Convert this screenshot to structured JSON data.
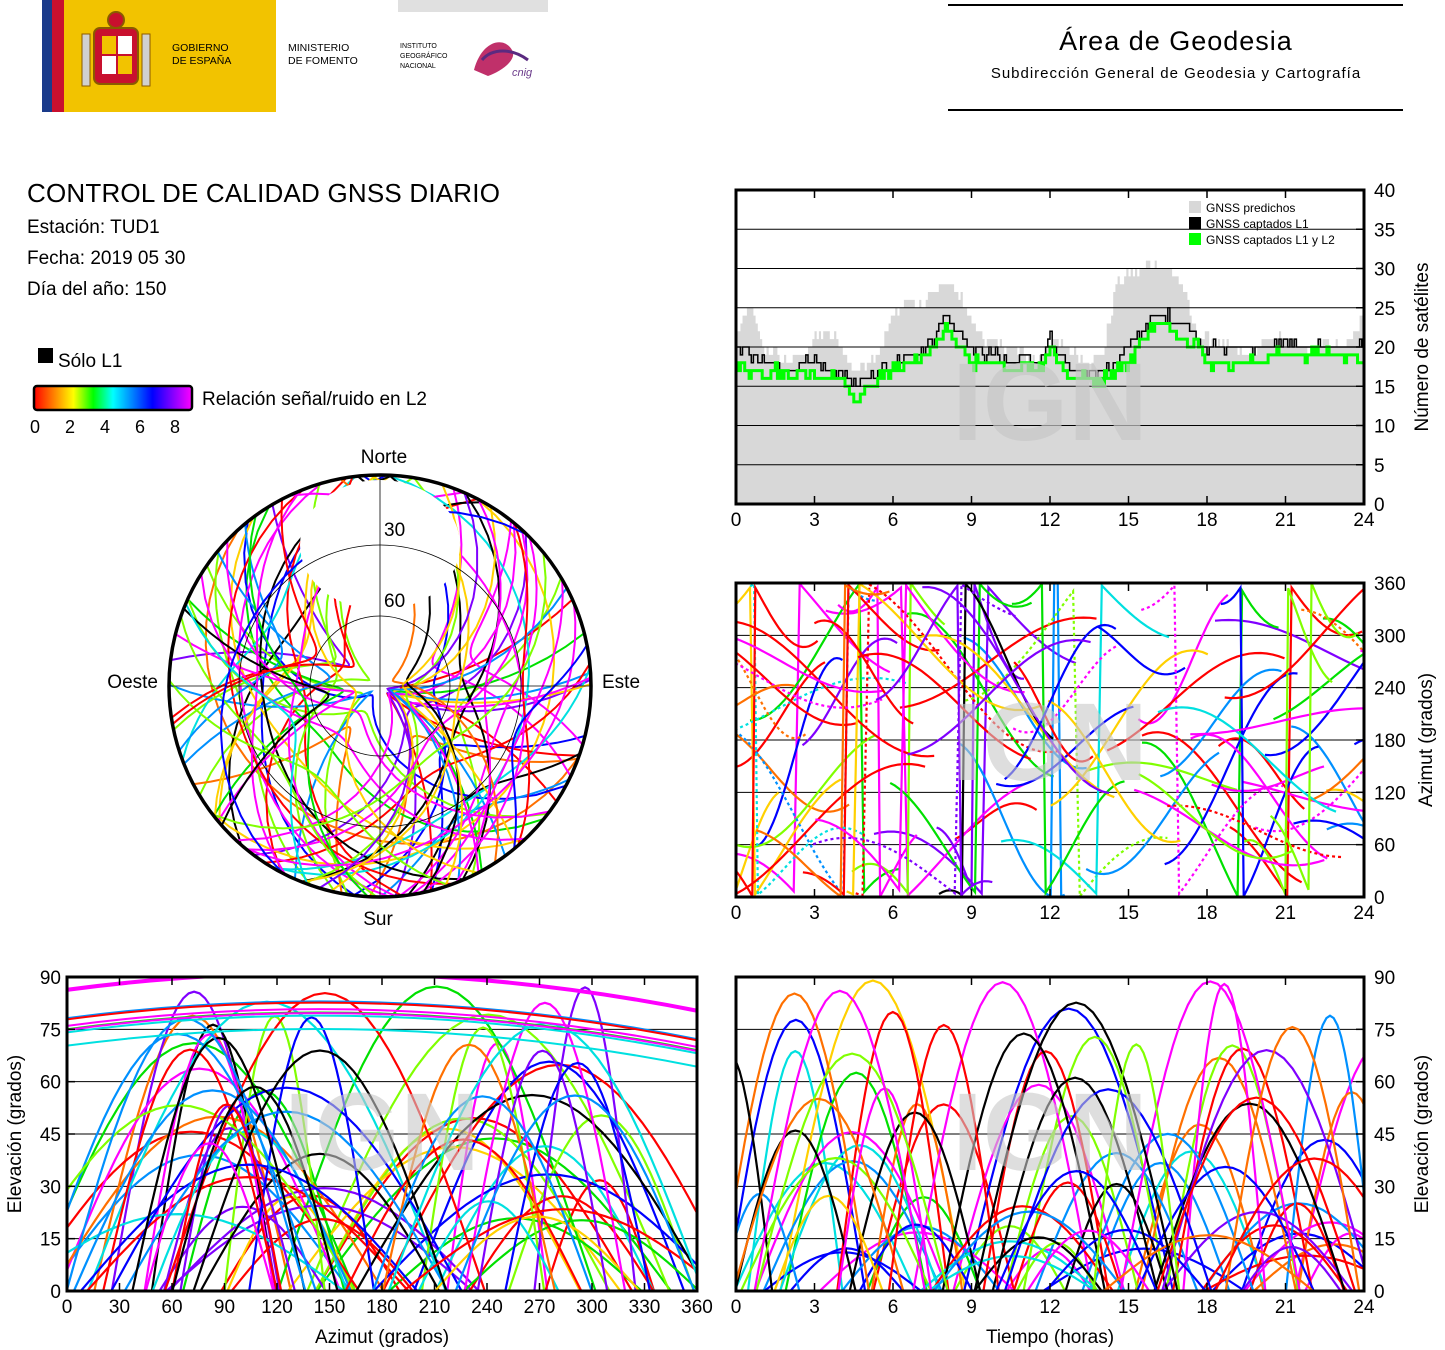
{
  "header": {
    "gobierno": [
      "GOBIERNO",
      "DE ESPAÑA"
    ],
    "ministerio": [
      "MINISTERIO",
      "DE FOMENTO"
    ],
    "instituto": [
      "INSTITUTO",
      "GEOGRÁFICO",
      "NACIONAL"
    ],
    "cnig": "cnig",
    "area_title": "Área de Geodesia",
    "area_subtitle": "Subdirección General de Geodesia y Cartografía"
  },
  "info": {
    "title": "CONTROL DE CALIDAD GNSS DIARIO",
    "station": "Estación: TUD1",
    "date": "Fecha: 2019 05 30",
    "doy": "Día del año: 150"
  },
  "legend": {
    "l1_only": "Sólo L1",
    "snr_label": "Relación señal/ruido en L2",
    "snr_ticks": [
      "0",
      "2",
      "4",
      "6",
      "8"
    ],
    "snr_colors": [
      "#ff0000",
      "#ff8000",
      "#ffff00",
      "#00ff00",
      "#00ffff",
      "#0080ff",
      "#0000ff",
      "#8000ff",
      "#ff00ff"
    ]
  },
  "watermark": "IGN",
  "colors": {
    "predicted": "#d8d8d8",
    "l1": "#000000",
    "l1l2": "#00ff00"
  },
  "chart_data": [
    {
      "type": "area",
      "id": "satellites",
      "ylabel": "Número de satélites",
      "xlim": [
        0,
        24
      ],
      "ylim": [
        0,
        40
      ],
      "xticks": [
        0,
        3,
        6,
        9,
        12,
        15,
        18,
        21,
        24
      ],
      "yticks": [
        0,
        5,
        10,
        15,
        20,
        25,
        30,
        35,
        40
      ],
      "grid": true,
      "legend_position": "top-right",
      "series": [
        {
          "name": "GNSS predichos",
          "x": [
            0,
            0.5,
            1,
            1.5,
            2,
            2.5,
            3,
            3.5,
            4,
            4.5,
            5,
            5.5,
            6,
            6.5,
            7,
            7.5,
            8,
            8.5,
            9,
            9.5,
            10,
            10.5,
            11,
            11.5,
            12,
            12.5,
            13,
            13.5,
            14,
            14.5,
            15,
            15.5,
            16,
            16.5,
            17,
            17.5,
            18,
            18.5,
            19,
            19.5,
            20,
            20.5,
            21,
            21.5,
            22,
            22.5,
            23,
            23.5,
            24
          ],
          "values": [
            22,
            25,
            20,
            19,
            18,
            19,
            21,
            22,
            20,
            17,
            18,
            20,
            24,
            26,
            25,
            27,
            28,
            27,
            23,
            21,
            20,
            20,
            19,
            18,
            21,
            20,
            19,
            18,
            19,
            28,
            29,
            30,
            31,
            30,
            28,
            22,
            21,
            20,
            20,
            19,
            20,
            21,
            21,
            20,
            20,
            21,
            20,
            21,
            25
          ]
        },
        {
          "name": "GNSS captados L1",
          "x": [
            0,
            0.5,
            1,
            1.5,
            2,
            2.5,
            3,
            3.5,
            4,
            4.5,
            5,
            5.5,
            6,
            6.5,
            7,
            7.5,
            8,
            8.5,
            9,
            9.5,
            10,
            10.5,
            11,
            11.5,
            12,
            12.5,
            13,
            13.5,
            14,
            14.5,
            15,
            15.5,
            16,
            16.5,
            17,
            17.5,
            18,
            18.5,
            19,
            19.5,
            20,
            20.5,
            21,
            21.5,
            22,
            22.5,
            23,
            23.5,
            24
          ],
          "values": [
            20,
            19,
            18,
            18,
            17,
            18,
            18,
            17,
            17,
            15,
            16,
            17,
            18,
            19,
            19,
            21,
            24,
            22,
            20,
            19,
            19,
            18,
            19,
            18,
            21,
            18,
            17,
            17,
            17,
            18,
            20,
            22,
            24,
            24,
            23,
            22,
            20,
            20,
            20,
            20,
            20,
            20,
            21,
            20,
            20,
            20,
            20,
            20,
            20
          ]
        },
        {
          "name": "GNSS captados L1 y L2",
          "x": [
            0,
            0.5,
            1,
            1.5,
            2,
            2.5,
            3,
            3.5,
            4,
            4.5,
            5,
            5.5,
            6,
            6.5,
            7,
            7.5,
            8,
            8.5,
            9,
            9.5,
            10,
            10.5,
            11,
            11.5,
            12,
            12.5,
            13,
            13.5,
            14,
            14.5,
            15,
            15.5,
            16,
            16.5,
            17,
            17.5,
            18,
            18.5,
            19,
            19.5,
            20,
            20.5,
            21,
            21.5,
            22,
            22.5,
            23,
            23.5,
            24
          ],
          "values": [
            18,
            17,
            16,
            17,
            16,
            17,
            16,
            16,
            16,
            13,
            15,
            16,
            17,
            18,
            18,
            20,
            23,
            20,
            18,
            18,
            18,
            17,
            18,
            17,
            20,
            17,
            16,
            16,
            16,
            17,
            18,
            21,
            23,
            23,
            21,
            21,
            18,
            18,
            18,
            18,
            18,
            19,
            19,
            19,
            19,
            19,
            19,
            19,
            18
          ]
        }
      ]
    },
    {
      "type": "scatter",
      "id": "skyplot",
      "labels": {
        "north": "Norte",
        "south": "Sur",
        "west": "Oeste",
        "east": "Este"
      },
      "rings": [
        "30",
        "60"
      ]
    },
    {
      "type": "scatter",
      "id": "azimuth_vs_time",
      "ylabel": "Azimut (grados)",
      "xlim": [
        0,
        24
      ],
      "ylim": [
        0,
        360
      ],
      "xticks": [
        0,
        3,
        6,
        9,
        12,
        15,
        18,
        21,
        24
      ],
      "yticks": [
        0,
        60,
        120,
        180,
        240,
        300,
        360
      ]
    },
    {
      "type": "scatter",
      "id": "elevation_vs_azimuth",
      "xlabel": "Azimut (grados)",
      "ylabel": "Elevación (grados)",
      "xlim": [
        0,
        360
      ],
      "ylim": [
        0,
        90
      ],
      "xticks": [
        0,
        30,
        60,
        90,
        120,
        150,
        180,
        210,
        240,
        270,
        300,
        330,
        360
      ],
      "yticks": [
        0,
        15,
        30,
        45,
        60,
        75,
        90
      ]
    },
    {
      "type": "scatter",
      "id": "elevation_vs_time",
      "xlabel": "Tiempo (horas)",
      "ylabel": "Elevación (grados)",
      "xlim": [
        0,
        24
      ],
      "ylim": [
        0,
        90
      ],
      "xticks": [
        0,
        3,
        6,
        9,
        12,
        15,
        18,
        21,
        24
      ],
      "yticks": [
        0,
        15,
        30,
        45,
        60,
        75,
        90
      ]
    }
  ]
}
